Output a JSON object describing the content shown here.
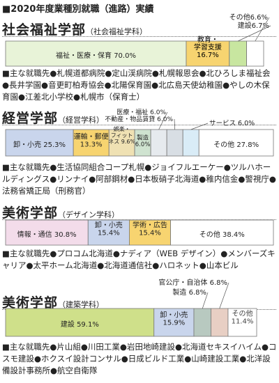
{
  "page_title": "■2020年度業種別就職（進路）実績",
  "chart_data": [
    {
      "type": "bar",
      "title": "社会福祉学部",
      "subtitle": "（社会福祉学科）",
      "stacked": true,
      "orientation": "horizontal",
      "xlim": [
        0,
        100
      ],
      "segments": [
        {
          "label": "福祉・医療・保育 70.0%",
          "value": 70.0,
          "color": "#e8f3d8"
        },
        {
          "label": "教育・\n学習支援\n16.7%",
          "value": 16.7,
          "color": "#f7d470"
        },
        {
          "label": "建設6.7%",
          "value": 6.7,
          "color": "#c8e6a0"
        },
        {
          "label": "その他6.6%",
          "value": 6.6,
          "color": "#ffffff"
        }
      ],
      "employers": "■主な就職先●札幌道都病院●定山渓病院●札幌報恩会●北ひろしま福祉会●長井学園●音更町柏寿協会●北陽保育園●北広島天使幼稚園●やしの木保育園●江差北小学校●札幌市（保育士）"
    },
    {
      "type": "bar",
      "title": "経営学部",
      "subtitle": "（経営学科）",
      "stacked": true,
      "orientation": "horizontal",
      "xlim": [
        0,
        100
      ],
      "segments": [
        {
          "label": "卸・小売 25.3%",
          "value": 25.3,
          "color": "#c9d5ec"
        },
        {
          "label": "運輸・郵便\n13.3%",
          "value": 13.3,
          "color": "#f7d470"
        },
        {
          "label": "娯楽・\nフィット\nネス 9.6%",
          "value": 9.6,
          "color": "#efe1b3"
        },
        {
          "label": "製造\n6.0%",
          "value": 6.0,
          "color": "#cfe3d0"
        },
        {
          "label": "医療・福祉 6.0%",
          "value": 6.0,
          "color": "#e6eaee"
        },
        {
          "label": "不動産・物品賃貸 6.0%",
          "value": 6.0,
          "color": "#d8dee4"
        },
        {
          "label": "サービス 6.0%",
          "value": 6.0,
          "color": "#d9ecf7"
        },
        {
          "label": "その他 27.8%",
          "value": 27.8,
          "color": "#ffffff"
        }
      ],
      "employers": "■主な就職先●生活協同組合コープ札幌●ジョイフルエーケー●ツルハホールディングス●リンナイ●阿部鋼材●日本板硝子北海道●稚内信金●警視庁●法務省矯正局（刑務官）"
    },
    {
      "type": "bar",
      "title": "美術学部",
      "subtitle": "（デザイン学科）",
      "stacked": true,
      "orientation": "horizontal",
      "xlim": [
        0,
        100
      ],
      "segments": [
        {
          "label": "情報・通信 30.8%",
          "value": 30.8,
          "color": "#f3dcea"
        },
        {
          "label": "卸・小売\n15.4%",
          "value": 15.4,
          "color": "#c9d5ec"
        },
        {
          "label": "学術・広告\n15.4%",
          "value": 15.4,
          "color": "#f7d470"
        },
        {
          "label": "その他 38.4%",
          "value": 38.4,
          "color": "#ffffff"
        }
      ],
      "employers": "■主な就職先●プロコム北海道●ナディア（WEB デザイン）●メンバーズキャリア●太平ホーム北海道●北海道通信社●ハロネット●山本ビル"
    },
    {
      "type": "bar",
      "title": "美術学部",
      "subtitle": "（建築学科）",
      "stacked": true,
      "orientation": "horizontal",
      "xlim": [
        0,
        100
      ],
      "segments": [
        {
          "label": "建設 59.1%",
          "value": 59.1,
          "color": "#cfe08a"
        },
        {
          "label": "卸・小売\n15.9%",
          "value": 15.9,
          "color": "#c9d5ec"
        },
        {
          "label": "製造 6.8%",
          "value": 6.8,
          "color": "#b8c9c0"
        },
        {
          "label": "官公庁・自治体 6.8%",
          "value": 6.8,
          "color": "#e8cfc4"
        },
        {
          "label": "その他\n11.4%",
          "value": 11.4,
          "color": "#ffffff"
        }
      ],
      "employers": "■主な就職先●片山組●川田工業●岩田地崎建設●北海道セキスイハイム●コスモ建設●ホクスイ設計コンサル●日成ビルド工業●山崎建設工業●北洋設備設計事務所●航空自衛隊"
    }
  ]
}
